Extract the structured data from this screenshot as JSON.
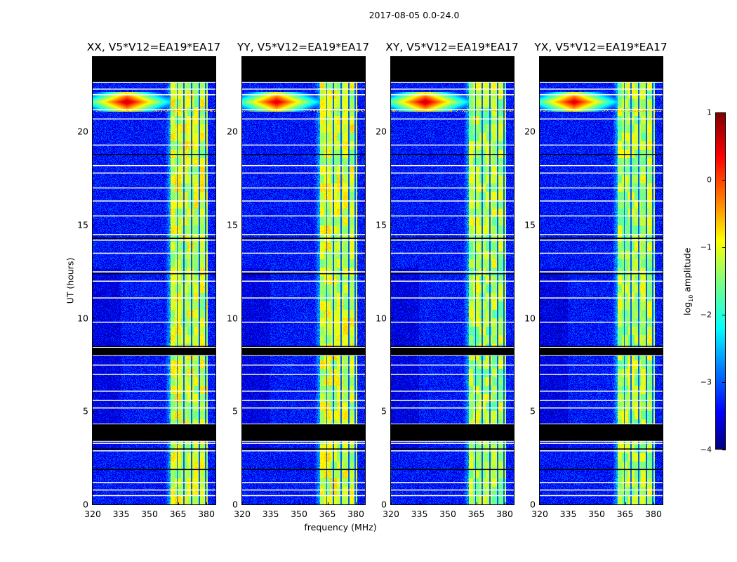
{
  "suptitle": "2017-08-05 0.0-24.0",
  "chart_data": {
    "type": "heatmap",
    "title": "2017-08-05 0.0-24.0",
    "xlabel": "frequency (MHz)",
    "ylabel": "UT (hours)",
    "xlim": [
      320,
      384.8
    ],
    "ylim": [
      0,
      24
    ],
    "xticks": [
      320,
      335,
      350,
      365,
      380
    ],
    "yticks": [
      0,
      5,
      10,
      15,
      20
    ],
    "panels": [
      {
        "title": "XX, V5*V12=EA19*EA17"
      },
      {
        "title": "YY, V5*V12=EA19*EA17"
      },
      {
        "title": "XY, V5*V12=EA19*EA17"
      },
      {
        "title": "YX, V5*V12=EA19*EA17"
      }
    ],
    "colorbar": {
      "label_main": "log",
      "label_sub": "10",
      "label_rest": " amplitude",
      "range": [
        -4,
        1
      ],
      "ticks": [
        -4,
        -3,
        -2,
        -1,
        0,
        1
      ],
      "colormap": "jet"
    },
    "background_level": -3.3,
    "bright_band_mhz": [
      361,
      380.5
    ],
    "bright_band_level": -1.2,
    "band_gap_lines_mhz": [
      364.5,
      368,
      372,
      376,
      379.5
    ],
    "rfi": {
      "freq_mhz": 338,
      "hour": 21.6,
      "level": 0.8
    },
    "flagged_hours": [
      [
        22.65,
        24
      ],
      [
        8.0,
        8.4
      ],
      [
        3.4,
        4.3
      ]
    ],
    "white_line_hours": [
      0.5,
      0.8,
      1.2,
      2.9,
      3.3,
      5.2,
      5.6,
      6.1,
      7.0,
      7.5,
      9.8,
      11.1,
      12.0,
      12.5,
      13.5,
      14.2,
      14.5,
      15.5,
      16.3,
      17.0,
      17.8,
      18.2,
      19.3,
      20.7,
      21.2,
      22.0,
      22.3
    ],
    "black_line_hours": [
      1.9,
      3.0,
      8.5,
      12.4,
      14.3,
      18.8
    ]
  }
}
